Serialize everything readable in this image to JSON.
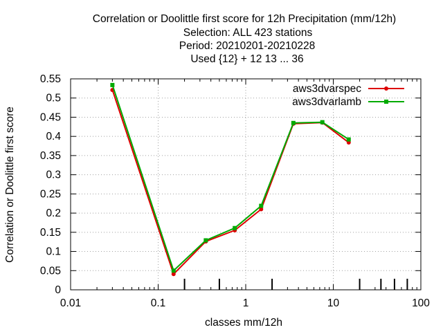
{
  "chart_data": {
    "type": "line",
    "title": [
      "Correlation or Doolittle first score  for 12h Precipitation (mm/12h)",
      "Selection: ALL    423 stations",
      "Period: 20210201-20210228",
      "Used {12} + 12 13 ... 36"
    ],
    "xlabel": "classes mm/12h",
    "ylabel": "Correlation or Doolittle first score",
    "xscale": "log",
    "xlim": [
      0.01,
      100
    ],
    "ylim": [
      0,
      0.55
    ],
    "xticks": [
      "0.01",
      "0.1",
      "1",
      "10",
      "100"
    ],
    "yticks": [
      "0",
      "0.05",
      "0.1",
      "0.15",
      "0.2",
      "0.25",
      "0.3",
      "0.35",
      "0.4",
      "0.45",
      "0.5",
      "0.55"
    ],
    "grid": true,
    "legend_position": "top-right",
    "series": [
      {
        "name": "aws3dvarspec",
        "color": "#dd0000",
        "x": [
          0.03,
          0.15,
          0.35,
          0.75,
          1.5,
          3.5,
          7.5,
          15
        ],
        "values": [
          0.521,
          0.041,
          0.126,
          0.155,
          0.21,
          0.433,
          0.436,
          0.384
        ]
      },
      {
        "name": "aws3dvarlamb",
        "color": "#00aa00",
        "x": [
          0.03,
          0.15,
          0.35,
          0.75,
          1.5,
          3.5,
          7.5,
          15
        ],
        "values": [
          0.534,
          0.05,
          0.129,
          0.161,
          0.219,
          0.435,
          0.437,
          0.392
        ]
      }
    ],
    "class_markers_x": [
      0.2,
      0.5,
      2,
      20,
      35,
      50,
      70
    ]
  }
}
